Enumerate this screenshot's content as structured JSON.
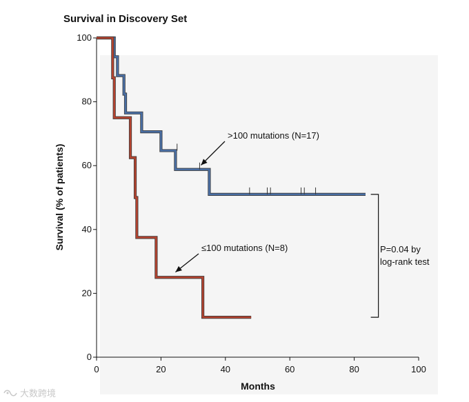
{
  "chart_data": {
    "type": "line",
    "subtype": "kaplan-meier",
    "title": "Survival in Discovery Set",
    "xlabel": "Months",
    "ylabel": "Survival (% of patients)",
    "xlim": [
      0,
      100
    ],
    "ylim": [
      0,
      100
    ],
    "xticks": [
      0,
      20,
      40,
      60,
      80,
      100
    ],
    "yticks": [
      0,
      20,
      40,
      60,
      80,
      100
    ],
    "grid": false,
    "series": [
      {
        "name": ">100 mutations (N=17)",
        "color": "#4a6fa5",
        "steps": [
          [
            0,
            100
          ],
          [
            5.5,
            94.1
          ],
          [
            6.5,
            88.2
          ],
          [
            8.5,
            82.4
          ],
          [
            9,
            76.5
          ],
          [
            14,
            70.6
          ],
          [
            20,
            64.7
          ],
          [
            24.5,
            58.8
          ],
          [
            35,
            51.0
          ],
          [
            83.5,
            51.0
          ]
        ],
        "censor_marks": [
          [
            25,
            64.7
          ],
          [
            32,
            58.8
          ],
          [
            47.5,
            51.0
          ],
          [
            53,
            51.0
          ],
          [
            54,
            51.0
          ],
          [
            63.5,
            51.0
          ],
          [
            64.5,
            51.0
          ],
          [
            68,
            51.0
          ]
        ]
      },
      {
        "name": "≤100 mutations (N=8)",
        "color": "#b5432f",
        "steps": [
          [
            0,
            100
          ],
          [
            5,
            87.5
          ],
          [
            5.5,
            75.0
          ],
          [
            10.5,
            62.5
          ],
          [
            12,
            50.0
          ],
          [
            12.5,
            37.5
          ],
          [
            18.5,
            25.0
          ],
          [
            33,
            12.5
          ],
          [
            48,
            12.5
          ]
        ],
        "censor_marks": []
      }
    ],
    "annotations": [
      {
        "text": ">100 mutations (N=17)",
        "arrow_to": [
          32,
          59.5
        ]
      },
      {
        "text": "≤100 mutations (N=8)",
        "arrow_to": [
          24.5,
          26
        ]
      },
      {
        "text_line1": "P=0.04 by",
        "text_line2": "log-rank test",
        "bracket_x": 87.5,
        "bracket_y": [
          51.0,
          12.5
        ]
      }
    ]
  },
  "watermark": {
    "text": "大数跨境"
  }
}
